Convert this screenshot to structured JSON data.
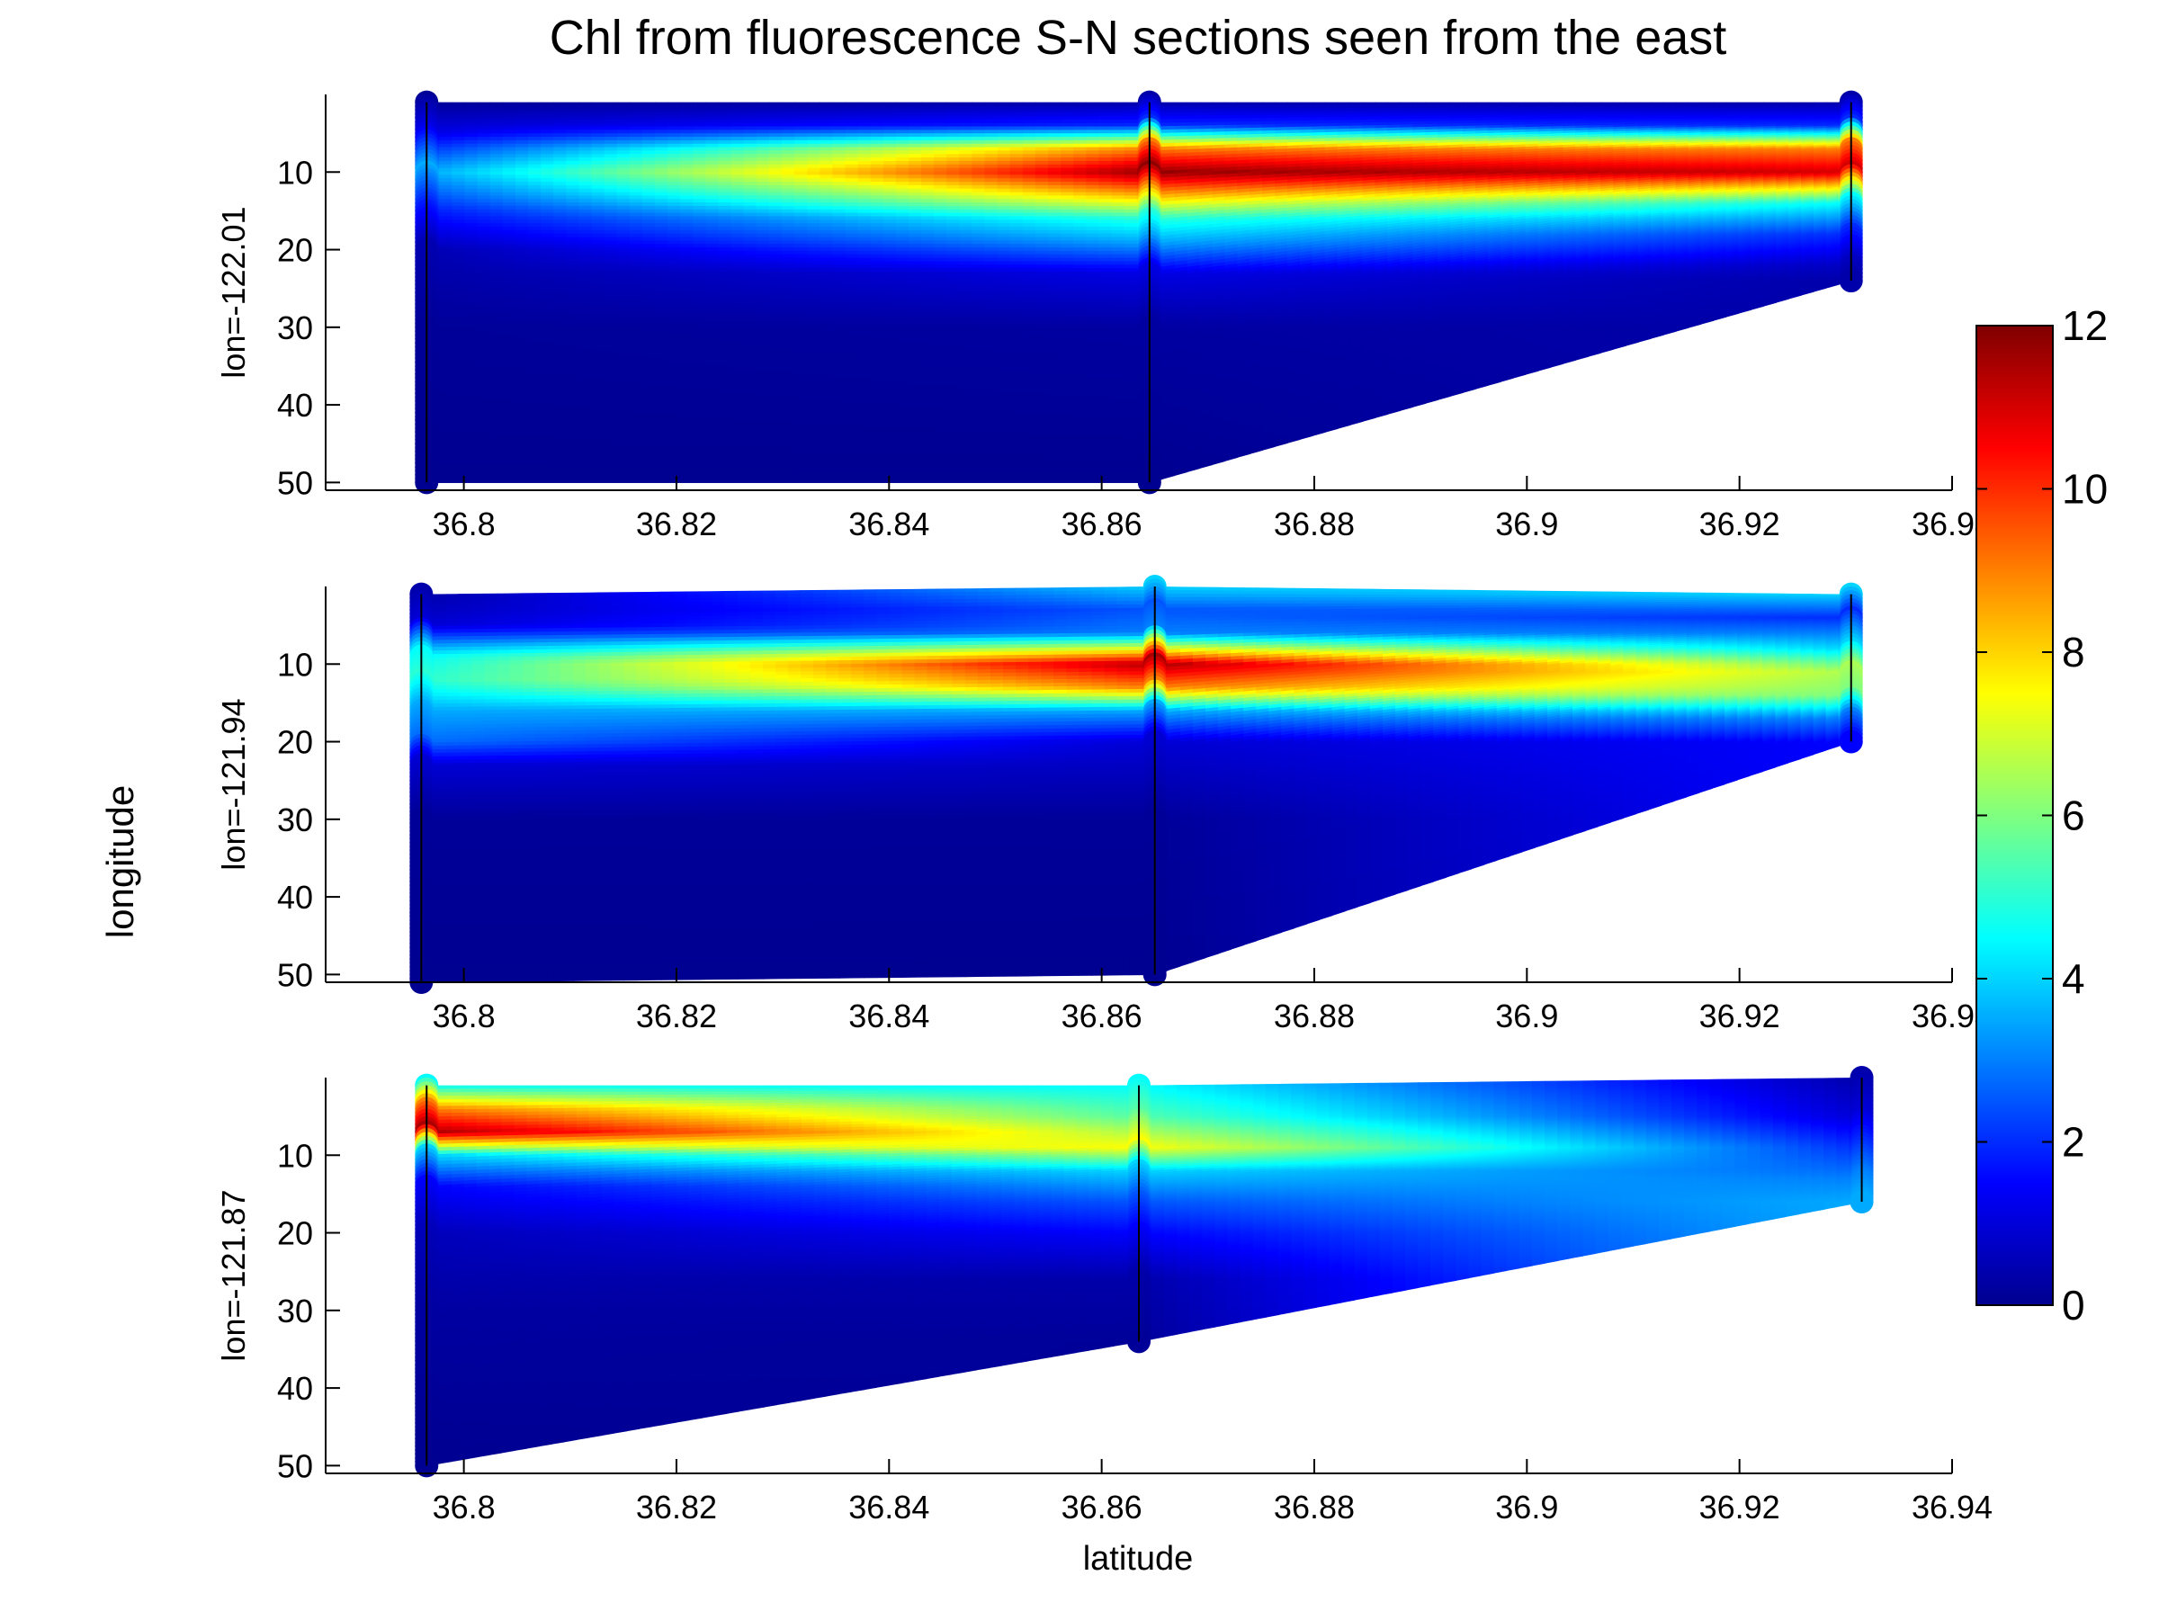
{
  "chart_data": {
    "type": "heatmap",
    "title": "Chl from fluorescence S-N sections seen from the east",
    "xlabel": "latitude",
    "ylabel": "longitude",
    "xlim": [
      36.787,
      36.94
    ],
    "ylim": [
      51,
      0
    ],
    "x_ticks": [
      36.8,
      36.82,
      36.84,
      36.86,
      36.88,
      36.9,
      36.92,
      36.94
    ],
    "x_tick_labels": [
      "36.8",
      "36.82",
      "36.84",
      "36.86",
      "36.88",
      "36.9",
      "36.92",
      "36.94"
    ],
    "y_ticks": [
      10,
      20,
      30,
      40,
      50
    ],
    "y_tick_labels": [
      "10",
      "20",
      "30",
      "40",
      "50"
    ],
    "colorbar": {
      "colormap": "jet",
      "range": [
        0,
        12
      ],
      "ticks": [
        0,
        2,
        4,
        6,
        8,
        10,
        12
      ],
      "tick_labels": [
        "0",
        "2",
        "4",
        "6",
        "8",
        "10",
        "12"
      ]
    },
    "grid": false,
    "panels": [
      {
        "label": "lon=-122.01",
        "stations": [
          {
            "lat": 36.7965,
            "top": 1,
            "bottom": 50,
            "profile": [
              [
                1,
                0.3
              ],
              [
                5,
                1.2
              ],
              [
                10,
                3.5
              ],
              [
                15,
                1.8
              ],
              [
                20,
                0.6
              ],
              [
                30,
                0.3
              ],
              [
                50,
                0.2
              ]
            ]
          },
          {
            "lat": 36.8645,
            "top": 1,
            "bottom": 50,
            "profile": [
              [
                1,
                0.5
              ],
              [
                4,
                2.0
              ],
              [
                7,
                9.0
              ],
              [
                10,
                11.8
              ],
              [
                13,
                8.5
              ],
              [
                16,
                5.0
              ],
              [
                19,
                3.5
              ],
              [
                23,
                1.2
              ],
              [
                30,
                0.4
              ],
              [
                50,
                0.2
              ]
            ]
          },
          {
            "lat": 36.9305,
            "top": 1,
            "bottom": 24,
            "profile": [
              [
                1,
                0.5
              ],
              [
                4,
                2.0
              ],
              [
                7,
                9.0
              ],
              [
                10,
                11.0
              ],
              [
                14,
                4.5
              ],
              [
                18,
                2.0
              ],
              [
                22,
                0.8
              ],
              [
                24,
                0.5
              ]
            ]
          }
        ]
      },
      {
        "label": "lon=-121.94",
        "stations": [
          {
            "lat": 36.796,
            "top": 1,
            "bottom": 51,
            "profile": [
              [
                1,
                0.5
              ],
              [
                5,
                1.0
              ],
              [
                9,
                4.5
              ],
              [
                12,
                5.0
              ],
              [
                16,
                3.5
              ],
              [
                20,
                2.8
              ],
              [
                23,
                1.0
              ],
              [
                30,
                0.3
              ],
              [
                51,
                0.2
              ]
            ]
          },
          {
            "lat": 36.865,
            "top": 0,
            "bottom": 50,
            "profile": [
              [
                0,
                4.0
              ],
              [
                3,
                2.5
              ],
              [
                6,
                3.0
              ],
              [
                10,
                11.5
              ],
              [
                13,
                9.0
              ],
              [
                16,
                3.5
              ],
              [
                20,
                1.0
              ],
              [
                30,
                0.3
              ],
              [
                50,
                0.2
              ]
            ]
          },
          {
            "lat": 36.9305,
            "top": 1,
            "bottom": 20,
            "profile": [
              [
                1,
                4.0
              ],
              [
                4,
                2.0
              ],
              [
                8,
                4.0
              ],
              [
                11,
                6.5
              ],
              [
                14,
                6.0
              ],
              [
                17,
                3.0
              ],
              [
                20,
                1.5
              ]
            ]
          }
        ]
      },
      {
        "label": "lon=-121.87",
        "stations": [
          {
            "lat": 36.7965,
            "top": 1,
            "bottom": 50,
            "profile": [
              [
                1,
                4.5
              ],
              [
                4,
                9.0
              ],
              [
                7,
                11.5
              ],
              [
                10,
                4.0
              ],
              [
                14,
                1.5
              ],
              [
                20,
                0.7
              ],
              [
                30,
                0.4
              ],
              [
                50,
                0.2
              ]
            ]
          },
          {
            "lat": 36.8635,
            "top": 1,
            "bottom": 34,
            "profile": [
              [
                1,
                4.5
              ],
              [
                5,
                5.5
              ],
              [
                9,
                7.5
              ],
              [
                12,
                4.0
              ],
              [
                16,
                2.5
              ],
              [
                20,
                1.5
              ],
              [
                26,
                0.5
              ],
              [
                34,
                0.3
              ]
            ]
          },
          {
            "lat": 36.9315,
            "top": 0,
            "bottom": 16,
            "profile": [
              [
                0,
                0.5
              ],
              [
                5,
                1.0
              ],
              [
                9,
                2.0
              ],
              [
                13,
                3.0
              ],
              [
                16,
                3.5
              ]
            ]
          }
        ]
      }
    ]
  }
}
